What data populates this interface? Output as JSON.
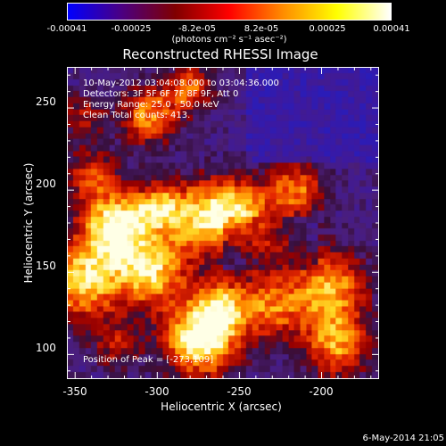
{
  "colors": {
    "background": "#000000",
    "foreground": "#ffffff",
    "colormap": [
      "#0000ff",
      "#4b0082",
      "#800000",
      "#ff0000",
      "#ff8c00",
      "#ffff00",
      "#ffffff"
    ]
  },
  "colorbar": {
    "ticks": [
      "-0.00041",
      "-0.00025",
      "-8.2e-05",
      "8.2e-05",
      "0.00025",
      "0.00041"
    ],
    "units": "(photons cm⁻² s⁻¹ asec⁻²)"
  },
  "title": "Reconstructed RHESSI Image",
  "info": {
    "time": "10-May-2012 03:04:08.000 to 03:04:36.000",
    "detectors": "Detectors: 3F 5F 6F 7F 8F 9F, Att 0",
    "energy": "Energy Range: 25.0 - 50.0 keV",
    "method": "Clean     Total counts: 413.",
    "peak": "Position of Peak = [-273,109]"
  },
  "chart_data": {
    "type": "heatmap",
    "title": "Reconstructed RHESSI Image",
    "xlabel": "Heliocentric X (arcsec)",
    "ylabel": "Heliocentric Y (arcsec)",
    "xlim": [
      -355,
      -165
    ],
    "ylim": [
      85,
      275
    ],
    "xticks": [
      -350,
      -300,
      -250,
      -200
    ],
    "yticks": [
      100,
      150,
      200,
      250
    ],
    "color_range": [
      -0.00041,
      0.00041
    ],
    "peak": [
      -273,
      109
    ]
  },
  "timestamp": "6-May-2014 21:05"
}
